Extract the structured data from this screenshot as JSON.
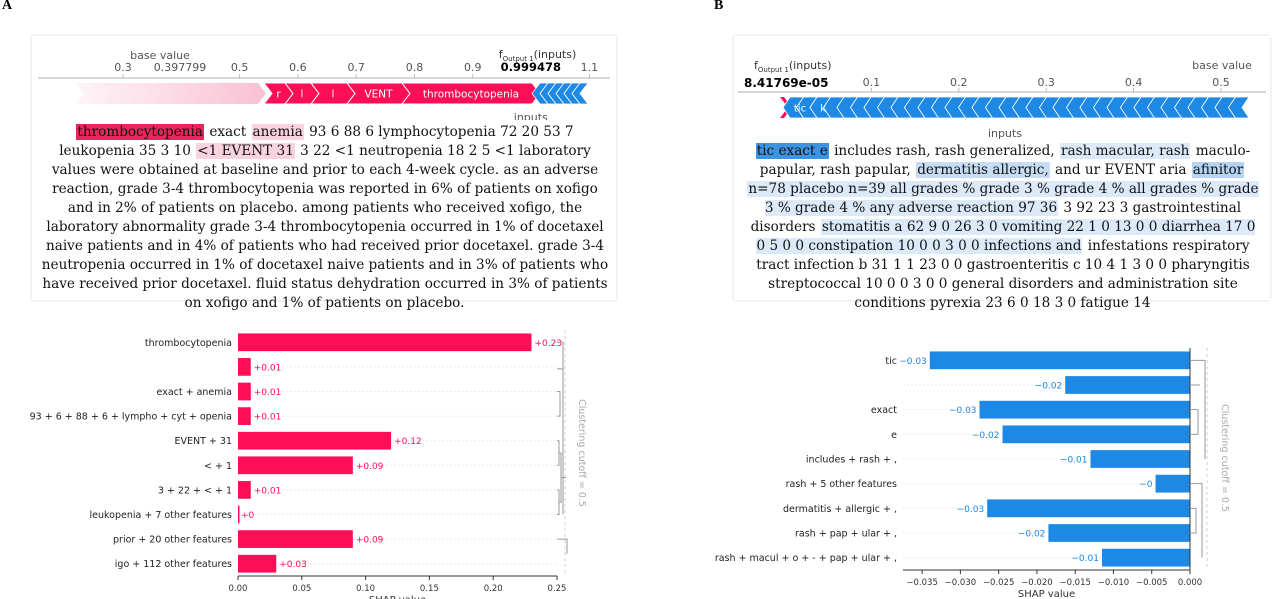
{
  "panels": {
    "a_label": "A",
    "b_label": "B"
  },
  "force_a": {
    "base_value_label": "base value",
    "output_label": "f",
    "output_sub": "Output 1",
    "output_suffix": "(inputs)",
    "output_value": "0.999478",
    "base_value": "0.397799",
    "axis_label": "inputs",
    "ticks": [
      {
        "value": 0.3,
        "label": "0.3"
      },
      {
        "value": 0.5,
        "label": "0.5"
      },
      {
        "value": 0.6,
        "label": "0.6"
      },
      {
        "value": 0.7,
        "label": "0.7"
      },
      {
        "value": 0.8,
        "label": "0.8"
      },
      {
        "value": 0.9,
        "label": "0.9"
      },
      {
        "value": 1.1,
        "label": "1.1"
      }
    ],
    "segment_labels": [
      "r",
      "l",
      "l",
      "VENT",
      "thrombocytopenia"
    ]
  },
  "force_b": {
    "base_value_label": "base value",
    "output_label": "f",
    "output_sub": "Output 1",
    "output_suffix": "(inputs)",
    "output_value": "8.41769e-05",
    "axis_label": "inputs",
    "ticks": [
      {
        "value": 0.1,
        "label": "0.1"
      },
      {
        "value": 0.2,
        "label": "0.2"
      },
      {
        "value": 0.3,
        "label": "0.3"
      },
      {
        "value": 0.4,
        "label": "0.4"
      },
      {
        "value": 0.5,
        "label": "0.5"
      }
    ],
    "segment_labels": [
      "tic",
      "k"
    ]
  },
  "text_a": [
    {
      "t": "thrombocytopenia",
      "c": "#e8255c"
    },
    {
      "t": " exact ",
      "c": ""
    },
    {
      "t": "anemia",
      "c": "#f8d3de"
    },
    {
      "t": " 93 6 88 6 lymphocytopenia 72 20 53 7 leukopenia 35 3 10 ",
      "c": ""
    },
    {
      "t": "<1 EVENT 31",
      "c": "#f8d3de"
    },
    {
      "t": " 3 22 <1 neutropenia 18 2 5 <1 laboratory values were obtained at baseline and prior to each 4-week cycle. as an adverse reaction, grade 3-4 thrombocytopenia was reported in 6% of patients on xofigo and in 2% of patients on placebo. among patients who received xofigo, the laboratory abnormality grade 3-4 thrombocytopenia occurred in 1% of docetaxel naive patients and in 4% of patients who had received prior docetaxel. grade 3-4 neutropenia occurred in 1% of docetaxel naive patients and in 3% of patients who have received prior docetaxel. fluid status dehydration occurred in 3% of patients on xofigo and 1% of patients on placebo.",
      "c": ""
    }
  ],
  "text_b": [
    {
      "t": "tic exact e",
      "c": "#3d93e0"
    },
    {
      "t": " includes rash, rash generalized, ",
      "c": ""
    },
    {
      "t": "rash macular, rash",
      "c": "#dbe9f8"
    },
    {
      "t": " maculo-papular, rash papular, ",
      "c": ""
    },
    {
      "t": "dermatitis allergic,",
      "c": "#c6ddf4"
    },
    {
      "t": " and ur EVENT aria ",
      "c": ""
    },
    {
      "t": "afinitor",
      "c": "#b6d4f2"
    },
    {
      "t": " ",
      "c": ""
    },
    {
      "t": "n=78 placebo n=39 all grades % grade 3 % grade 4 % all grades % grade 3 % grade 4 % any adverse reaction 97 36",
      "c": "#dbe9f8"
    },
    {
      "t": " 3 92 23 3 gastrointestinal disorders ",
      "c": ""
    },
    {
      "t": "stomatitis a 62 9 0 26 3 0 vomiting 22 1 0 13 0 0 diarrhea 17 0 0 5 0 0 constipation 10 0 0 3 0 0 infections and",
      "c": "#dbe9f8"
    },
    {
      "t": " infestations respiratory tract infection b 31 1 1 23 0 0 gastroenteritis c 10 4 1 3 0 0 pharyngitis streptococcal 10 0 0 3 0 0 general disorders and administration site conditions pyrexia 23 6 0 18 3 0 fatigue 14",
      "c": ""
    }
  ],
  "chart_data": [
    {
      "type": "bar",
      "orientation": "horizontal",
      "categories": [
        "thrombocytopenia",
        "",
        "exact + anemia",
        "93 + 6 + 88 + 6 + lympho + cyt + openia",
        "EVENT + 31",
        "< + 1",
        "3 + 22 + < + 1",
        "leukopenia + 7 other features",
        "prior + 20 other features",
        "igo + 112 other features"
      ],
      "values": [
        0.23,
        0.01,
        0.01,
        0.01,
        0.12,
        0.09,
        0.01,
        0.0,
        0.09,
        0.03
      ],
      "value_labels": [
        "+0.23",
        "+0.01",
        "+0.01",
        "+0.01",
        "+0.12",
        "+0.09",
        "+0.01",
        "+0",
        "+0.09",
        "+0.03"
      ],
      "xlabel": "SHAP value",
      "xlim": [
        0,
        0.25
      ],
      "xticks": [
        "0.00",
        "0.05",
        "0.10",
        "0.15",
        "0.20",
        "0.25"
      ],
      "clustering_label": "Clustering cutoff = 0.5",
      "color": "#ff0d57",
      "label_color": "#ff0d57"
    },
    {
      "type": "bar",
      "orientation": "horizontal",
      "categories": [
        "tic",
        "",
        "exact",
        "e",
        "includes + rash + ,",
        "rash + 5 other features",
        "dermatitis + allergic + ,",
        "rash + pap + ular + ,",
        "rash + macul + o + - + pap + ular + ,"
      ],
      "values": [
        -0.034,
        -0.0163,
        -0.0275,
        -0.0245,
        -0.013,
        -0.0045,
        -0.0265,
        -0.0185,
        -0.0115
      ],
      "value_labels": [
        "−0.03",
        "−0.02",
        "−0.03",
        "−0.02",
        "−0.01",
        "−0",
        "−0.03",
        "−0.02",
        "−0.01"
      ],
      "xlabel": "SHAP value",
      "xlim": [
        -0.0375,
        0.0
      ],
      "xticks": [
        "−0.035",
        "−0.030",
        "−0.025",
        "−0.020",
        "−0.015",
        "−0.010",
        "−0.005",
        "0.000"
      ],
      "xtick_values": [
        -0.035,
        -0.03,
        -0.025,
        -0.02,
        -0.015,
        -0.01,
        -0.005,
        0.0
      ],
      "clustering_label": "Clustering cutoff = 0.5",
      "color": "#1e88e5",
      "label_color": "#1e88e5"
    }
  ]
}
